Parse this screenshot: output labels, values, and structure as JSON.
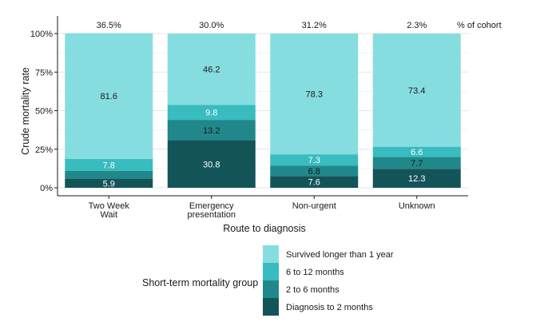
{
  "chart_data": {
    "type": "bar",
    "stacked": true,
    "ylabel": "Crude mortality rate",
    "xlabel": "Route to diagnosis",
    "ylim": [
      0,
      100
    ],
    "yticks": [
      "0%",
      "25%",
      "50%",
      "75%",
      "100%"
    ],
    "grid": true,
    "categories": [
      {
        "lines": [
          "Two Week",
          "Wait"
        ]
      },
      {
        "lines": [
          "Emergency",
          "presentation"
        ]
      },
      {
        "lines": [
          "Non-urgent"
        ]
      },
      {
        "lines": [
          "Unknown"
        ]
      }
    ],
    "cohort_header": "% of cohort",
    "cohort": [
      "36.5%",
      "30.0%",
      "31.2%",
      "2.3%"
    ],
    "series": [
      {
        "name": "Diagnosis to 2 months",
        "color": "#135458",
        "text_color": "#ffffff",
        "values": [
          5.9,
          30.8,
          7.6,
          12.3
        ]
      },
      {
        "name": "2 to 6 months",
        "color": "#20888b",
        "text_color": "#1a1a1a",
        "values": [
          5.0,
          13.2,
          6.8,
          7.7
        ]
      },
      {
        "name": "6 to 12 months",
        "color": "#38bcc0",
        "text_color": "#ffffff",
        "values": [
          7.8,
          9.8,
          7.3,
          6.6
        ]
      },
      {
        "name": "Survived longer than 1 year",
        "color": "#86dde0",
        "text_color": "#1a1a1a",
        "values": [
          81.6,
          46.2,
          78.3,
          73.4
        ]
      }
    ],
    "data_labels": [
      [
        "5.9",
        "30.8",
        "7.6",
        "12.3"
      ],
      [
        "",
        "13.2",
        "6.8",
        "7.7"
      ],
      [
        "7.8",
        "9.8",
        "7.3",
        "6.6"
      ],
      [
        "81.6",
        "46.2",
        "78.3",
        "73.4"
      ]
    ],
    "legend": {
      "title": "Short-term mortality group",
      "position": "bottom",
      "order": [
        3,
        2,
        1,
        0
      ]
    }
  }
}
